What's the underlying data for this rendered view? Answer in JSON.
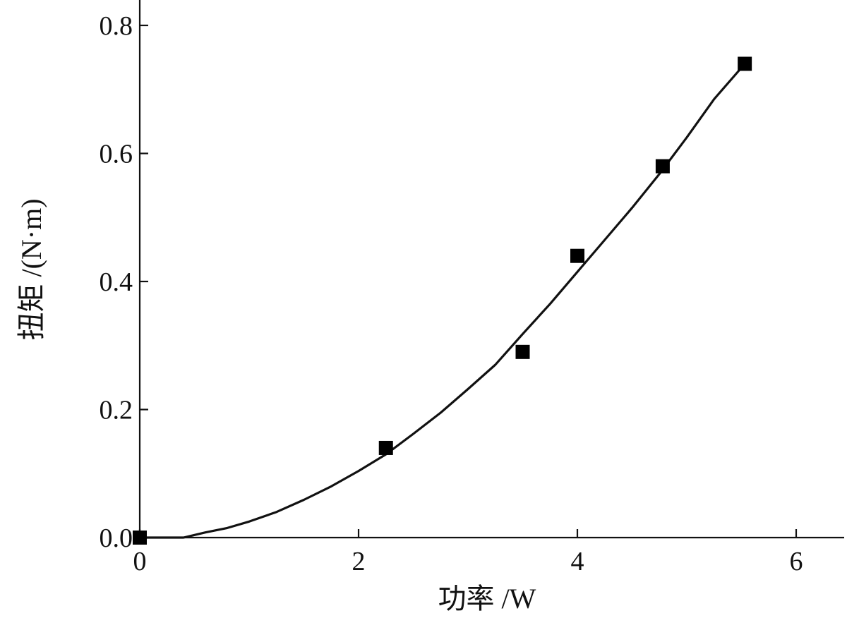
{
  "chart_data": {
    "type": "scatter",
    "xlabel": "功率 /W",
    "ylabel": "扭矩 /(N·m)",
    "xlim": [
      0,
      6.2
    ],
    "ylim": [
      0,
      0.84
    ],
    "xticks": [
      0,
      2,
      4,
      6
    ],
    "xtick_labels": [
      "0",
      "2",
      "4",
      "6"
    ],
    "yticks": [
      0.0,
      0.2,
      0.4,
      0.6,
      0.8
    ],
    "ytick_labels": [
      "0.0",
      "0.2",
      "0.4",
      "0.6",
      "0.8"
    ],
    "grid": false,
    "legend": "none",
    "series": [
      {
        "kind": "markers",
        "marker": "square",
        "color": "#000000",
        "x": [
          0.0,
          2.25,
          3.5,
          4.0,
          4.78,
          5.53
        ],
        "y": [
          0.0,
          0.14,
          0.29,
          0.44,
          0.58,
          0.74
        ]
      },
      {
        "kind": "line",
        "color": "#111111",
        "x": [
          0.0,
          0.4,
          0.6,
          0.8,
          1.0,
          1.25,
          1.5,
          1.75,
          2.0,
          2.25,
          2.5,
          2.75,
          3.0,
          3.25,
          3.5,
          3.75,
          4.0,
          4.25,
          4.5,
          4.75,
          5.0,
          5.25,
          5.53
        ],
        "y": [
          0.0,
          0.0,
          0.008,
          0.015,
          0.025,
          0.04,
          0.059,
          0.08,
          0.104,
          0.13,
          0.162,
          0.195,
          0.232,
          0.27,
          0.318,
          0.365,
          0.415,
          0.465,
          0.515,
          0.568,
          0.625,
          0.685,
          0.74
        ]
      }
    ]
  }
}
